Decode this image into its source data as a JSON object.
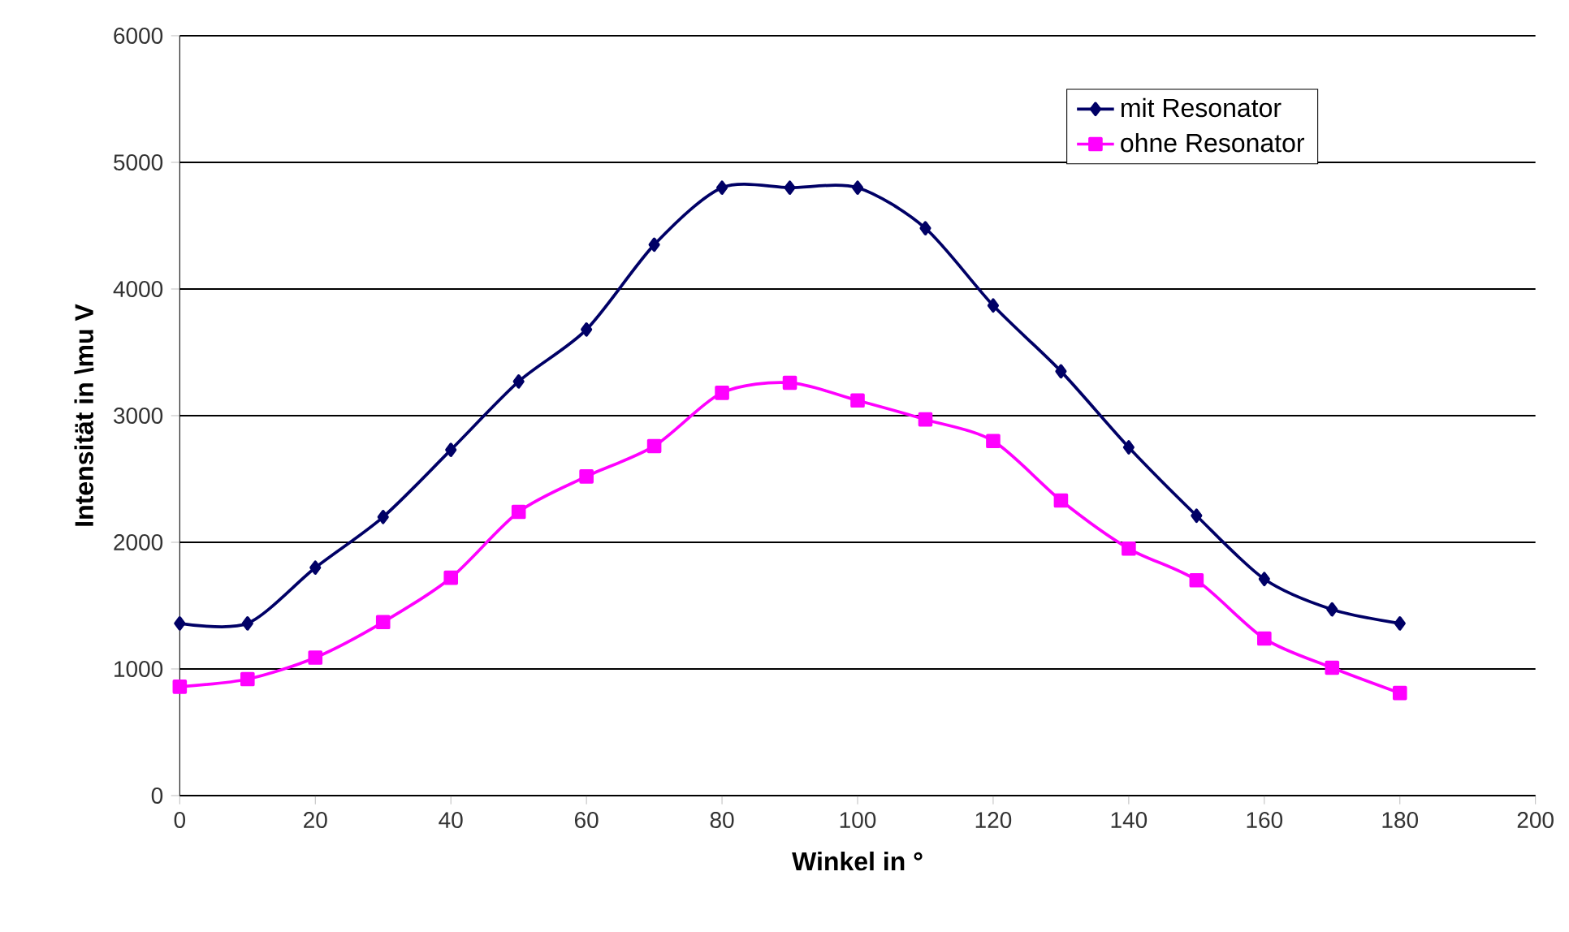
{
  "chart_data": {
    "type": "line",
    "xlabel": "Winkel in °",
    "ylabel": "Intensität in \\mu V",
    "x": [
      0,
      10,
      20,
      30,
      40,
      50,
      60,
      70,
      80,
      90,
      100,
      110,
      120,
      130,
      140,
      150,
      160,
      170,
      180
    ],
    "series": [
      {
        "name": "mit Resonator",
        "color": "#000066",
        "marker": "diamond",
        "values": [
          1360,
          1360,
          1800,
          2200,
          2730,
          3270,
          3680,
          4350,
          4800,
          4800,
          4800,
          4480,
          3870,
          3350,
          2750,
          2210,
          1710,
          1470,
          1360
        ]
      },
      {
        "name": "ohne Resonator",
        "color": "#ff00ff",
        "marker": "square",
        "values": [
          860,
          920,
          1090,
          1370,
          1720,
          2240,
          2520,
          2760,
          3180,
          3260,
          3120,
          2970,
          2800,
          2330,
          1950,
          1700,
          1240,
          1010,
          810
        ]
      }
    ],
    "xlim": [
      0,
      200
    ],
    "xticks": [
      0,
      20,
      40,
      60,
      80,
      100,
      120,
      140,
      160,
      180,
      200
    ],
    "ylim": [
      0,
      6000
    ],
    "yticks": [
      0,
      1000,
      2000,
      3000,
      4000,
      5000,
      6000
    ],
    "grid": "y",
    "legend": "top right",
    "line_style": "solid"
  }
}
